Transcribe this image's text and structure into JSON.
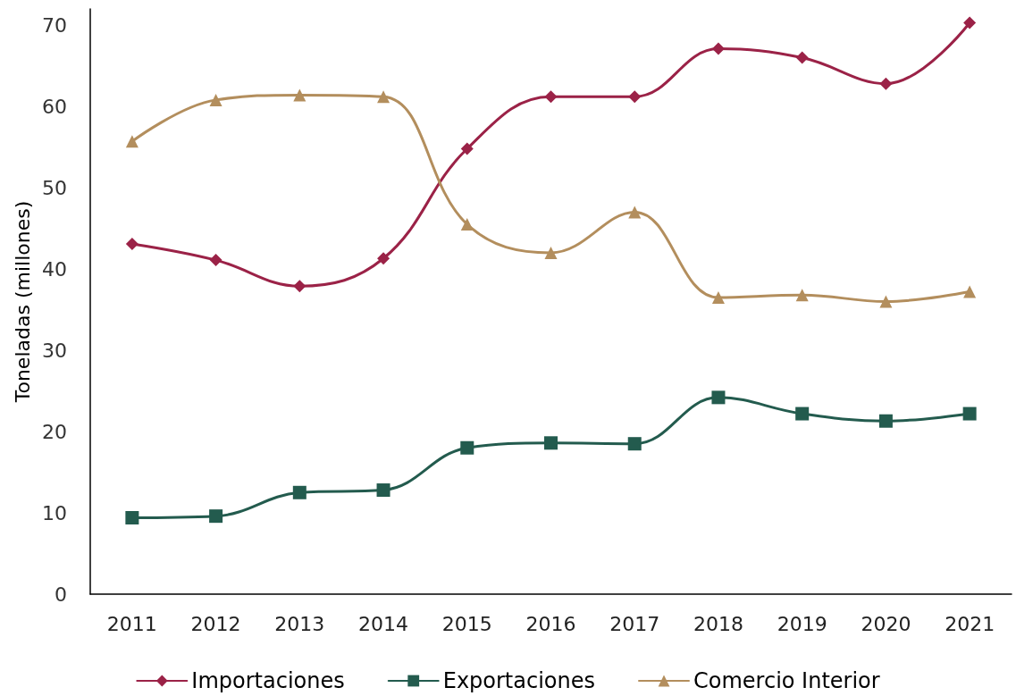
{
  "chart_data": {
    "type": "line",
    "ylabel": "Toneladas (millones)",
    "categories": [
      "2011",
      "2012",
      "2013",
      "2014",
      "2015",
      "2016",
      "2017",
      "2018",
      "2019",
      "2020",
      "2021"
    ],
    "series": [
      {
        "name": "Importaciones",
        "color": "#9b2247",
        "marker": "diamond",
        "values": [
          43.1,
          41.1,
          37.9,
          41.3,
          54.8,
          61.2,
          61.2,
          67.1,
          66.0,
          62.8,
          70.3
        ]
      },
      {
        "name": "Exportaciones",
        "color": "#235b4e",
        "marker": "square",
        "values": [
          9.4,
          9.6,
          12.5,
          12.8,
          18.0,
          18.6,
          18.5,
          24.2,
          22.2,
          21.3,
          22.2
        ]
      },
      {
        "name": "Comercio Interior",
        "color": "#b38e5d",
        "marker": "triangle",
        "values": [
          55.7,
          60.8,
          61.4,
          61.2,
          45.5,
          42.0,
          47.0,
          36.5,
          36.8,
          36.0,
          37.2
        ]
      }
    ],
    "ylim": [
      0,
      72
    ],
    "yticks": [
      0,
      10,
      20,
      30,
      40,
      50,
      60,
      70
    ],
    "grid": false,
    "legend": "bottom",
    "line_style": "solid"
  }
}
